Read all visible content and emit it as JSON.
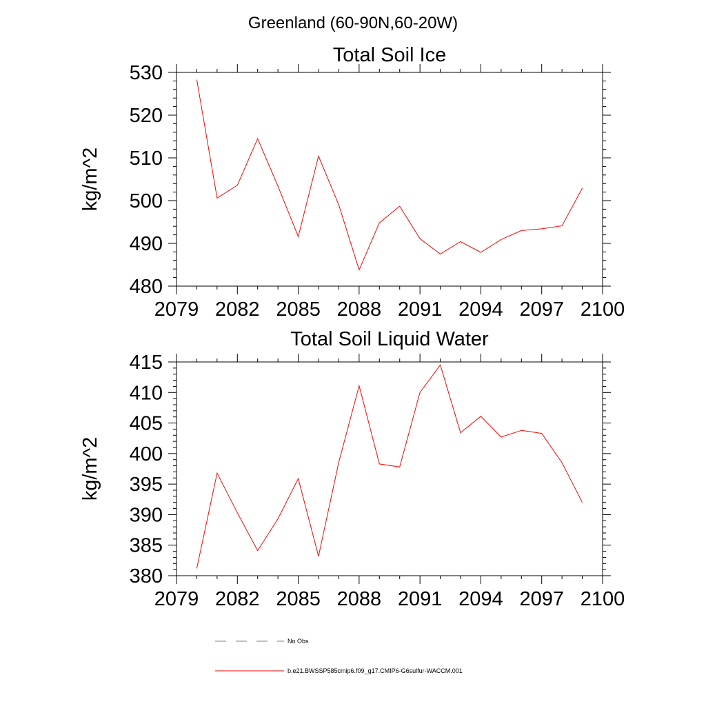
{
  "main_title": "Greenland (60-90N,60-20W)",
  "chart_data": [
    {
      "type": "line",
      "title": "Total Soil Ice",
      "xlabel": "",
      "ylabel": "kg/m^2",
      "xlim": [
        2079,
        2100
      ],
      "ylim": [
        480,
        530
      ],
      "x_ticks": [
        2079,
        2082,
        2085,
        2088,
        2091,
        2094,
        2097,
        2100
      ],
      "y_ticks": [
        480,
        490,
        500,
        510,
        520,
        530
      ],
      "grid": false,
      "series": [
        {
          "name": "b.e21.BWSSP585cmip6.f09_g17.CMIP6-G6sulfur-WACCM.001",
          "color": "#ff0000",
          "x": [
            2080,
            2081,
            2082,
            2083,
            2084,
            2085,
            2086,
            2087,
            2088,
            2089,
            2090,
            2091,
            2092,
            2093,
            2094,
            2095,
            2096,
            2097,
            2098,
            2099
          ],
          "values": [
            528.3,
            500.6,
            503.6,
            514.5,
            503.4,
            491.6,
            510.4,
            499.0,
            483.8,
            494.8,
            498.7,
            491.1,
            487.5,
            490.4,
            487.9,
            490.9,
            493.0,
            493.4,
            494.1,
            502.9
          ]
        }
      ]
    },
    {
      "type": "line",
      "title": "Total Soil Liquid Water",
      "xlabel": "",
      "ylabel": "kg/m^2",
      "xlim": [
        2079,
        2100
      ],
      "ylim": [
        380,
        415
      ],
      "x_ticks": [
        2079,
        2082,
        2085,
        2088,
        2091,
        2094,
        2097,
        2100
      ],
      "y_ticks": [
        380,
        385,
        390,
        395,
        400,
        405,
        410,
        415
      ],
      "grid": false,
      "series": [
        {
          "name": "b.e21.BWSSP585cmip6.f09_g17.CMIP6-G6sulfur-WACCM.001",
          "color": "#ff0000",
          "x": [
            2080,
            2081,
            2082,
            2083,
            2084,
            2085,
            2086,
            2087,
            2088,
            2089,
            2090,
            2091,
            2092,
            2093,
            2094,
            2095,
            2096,
            2097,
            2098,
            2099
          ],
          "values": [
            381.2,
            396.8,
            390.3,
            384.1,
            389.3,
            395.9,
            383.2,
            398.6,
            411.1,
            398.3,
            397.8,
            410.0,
            414.5,
            403.4,
            406.1,
            402.7,
            403.8,
            403.3,
            398.5,
            392.0
          ]
        }
      ]
    }
  ],
  "legend": {
    "items": [
      {
        "label": "No Obs",
        "color": "#7f7f9f",
        "style": "dashed"
      },
      {
        "label": "b.e21.BWSSP585cmip6.f09_g17.CMIP6-G6sulfur-WACCM.001",
        "color": "#ff0000",
        "style": "solid"
      }
    ]
  }
}
